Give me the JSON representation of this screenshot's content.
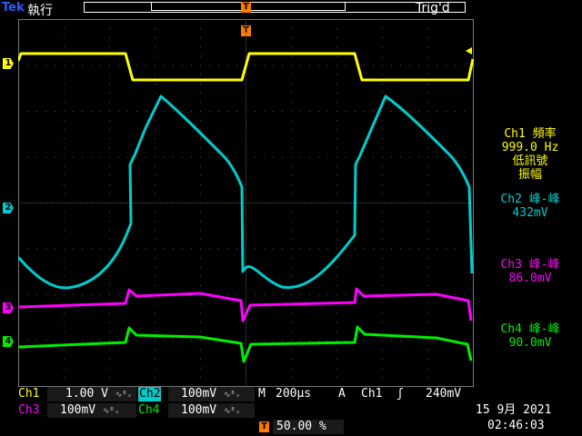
{
  "header": {
    "brand": "Tek",
    "mode": "執行",
    "trigger_status": "Trig'd",
    "trigger_marker": "T"
  },
  "channels": {
    "ch1": {
      "marker": "1",
      "color": "#ffff00"
    },
    "ch2": {
      "marker": "2",
      "color": "#00cccc"
    },
    "ch3": {
      "marker": "3",
      "color": "#ff00ff"
    },
    "ch4": {
      "marker": "4",
      "color": "#00ee00"
    }
  },
  "measurements": {
    "m1": {
      "line1": "Ch1 頻率",
      "line2": "999.0 Hz",
      "line3": "低訊號",
      "line4": "振幅"
    },
    "m2": {
      "line1": "Ch2 峰-峰",
      "line2": "432mV"
    },
    "m3": {
      "line1": "Ch3 峰-峰",
      "line2": "86.0mV"
    },
    "m4": {
      "line1": "Ch4 峰-峰",
      "line2": "90.0mV"
    }
  },
  "bottom": {
    "ch1_label": "Ch1",
    "ch1_scale": "1.00 V",
    "ch2_label": "Ch2",
    "ch2_scale": "100mV",
    "ch3_label": "Ch3",
    "ch3_scale": "100mV",
    "ch4_label": "Ch4",
    "ch4_scale": "100mV",
    "bw_symbol": "∿ᴮᵥ",
    "timebase_label": "M",
    "timebase": "200µs",
    "trigger_mode": "A",
    "trigger_source": "Ch1",
    "trigger_slope": "ʃ",
    "trigger_level": "240mV",
    "trigger_position": "50.00 %",
    "date": "15 9月  2021",
    "time": "02:46:03"
  },
  "colors": {
    "grid": "#666666",
    "background": "#000000",
    "trigger_orange": "#ff7a00"
  }
}
